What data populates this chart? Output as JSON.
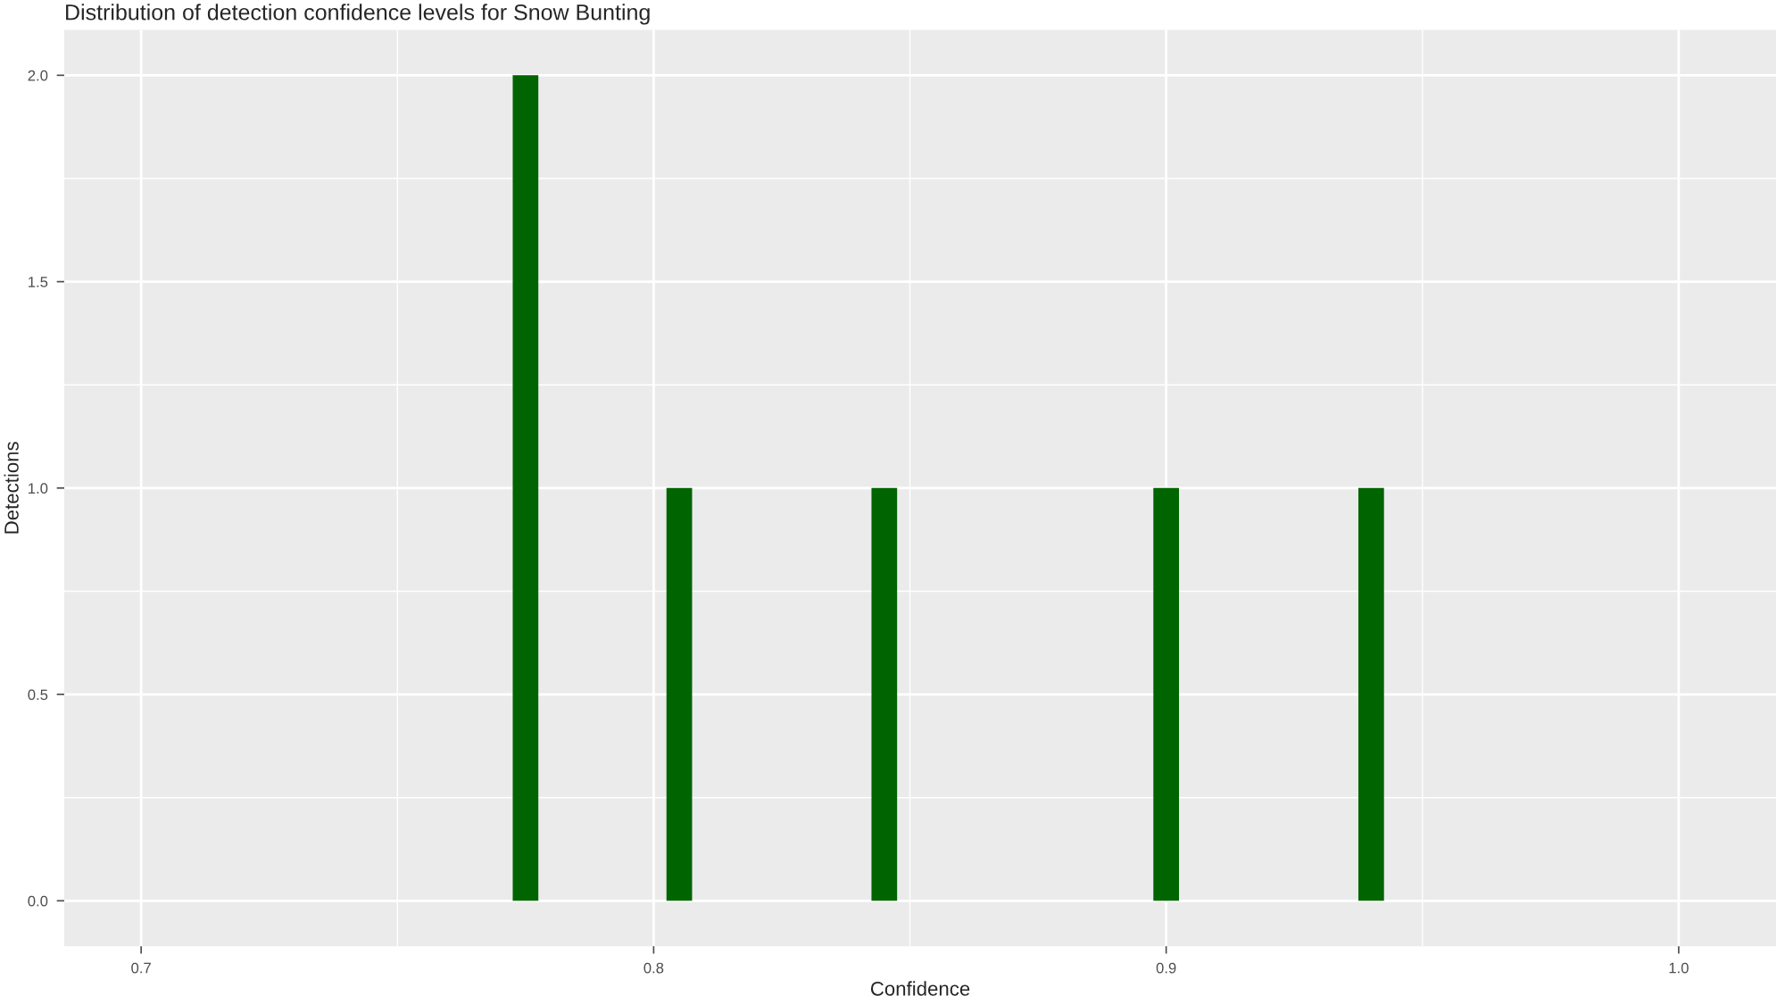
{
  "chart_data": {
    "type": "histogram",
    "title": "Distribution of detection confidence levels for Snow Bunting",
    "xlabel": "Confidence",
    "ylabel": "Detections",
    "bins": [
      0.7725,
      0.7775,
      0.7825,
      0.7875,
      0.7925,
      0.7975,
      0.8025,
      0.8075,
      0.8125,
      0.8175,
      0.8225,
      0.8275,
      0.8325,
      0.8375,
      0.8425,
      0.8475,
      0.8525,
      0.8575,
      0.8625,
      0.8675,
      0.8725,
      0.8775,
      0.8825,
      0.8875,
      0.8925,
      0.8975,
      0.9025,
      0.9075,
      0.9125,
      0.9175,
      0.9225,
      0.9275,
      0.9325,
      0.9375,
      0.9425
    ],
    "values": [
      2,
      0,
      0,
      0,
      0,
      0,
      1,
      0,
      0,
      0,
      0,
      0,
      0,
      0,
      1,
      0,
      0,
      0,
      0,
      0,
      0,
      0,
      0,
      0,
      0,
      1,
      0,
      0,
      0,
      0,
      0,
      0,
      0,
      1
    ],
    "color": "#006400",
    "xlim": [
      0.685,
      1.019
    ],
    "xticks": [
      {
        "value": 0.7,
        "label": "0.7"
      },
      {
        "value": 0.8,
        "label": "0.8"
      },
      {
        "value": 0.9,
        "label": "0.9"
      },
      {
        "value": 1.0,
        "label": "1.0"
      }
    ],
    "ylim": [
      -0.11,
      2.11
    ],
    "yticks": [
      {
        "value": 0,
        "label": "0.0"
      },
      {
        "value": 0.5,
        "label": "0.5"
      },
      {
        "value": 1,
        "label": "1.0"
      },
      {
        "value": 1.5,
        "label": "1.5"
      },
      {
        "value": 2,
        "label": "2.0"
      }
    ],
    "grid": true
  }
}
